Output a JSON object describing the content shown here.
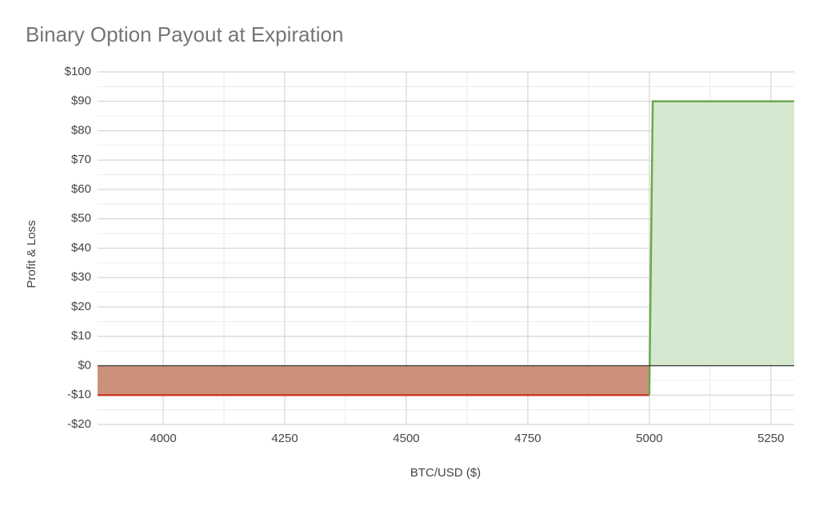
{
  "chart_data": {
    "type": "area",
    "title": "Binary Option Payout at Expiration",
    "x_label": "BTC/USD ($)",
    "y_label": "Profit & Loss",
    "series": [
      {
        "color": "#cc3b2a",
        "fill": "#c98b74",
        "x": [
          3865,
          5000
        ],
        "values": [
          -10,
          -10
        ]
      },
      {
        "color": "#6aa84f",
        "fill": "#d3e7cd",
        "x": [
          5000,
          5007,
          5298
        ],
        "values": [
          -10,
          90,
          90
        ]
      }
    ],
    "xlim": [
      3865,
      5298
    ],
    "xticks": [
      4000,
      4250,
      4500,
      4750,
      5000,
      5250
    ],
    "ylim": [
      -20,
      100
    ],
    "yticks": [
      {
        "value": -20,
        "label": "-$20"
      },
      {
        "value": -10,
        "label": "-$10"
      },
      {
        "value": 0,
        "label": "$0"
      },
      {
        "value": 10,
        "label": "$10"
      },
      {
        "value": 20,
        "label": "$20"
      },
      {
        "value": 30,
        "label": "$30"
      },
      {
        "value": 40,
        "label": "$40"
      },
      {
        "value": 50,
        "label": "$50"
      },
      {
        "value": 60,
        "label": "$60"
      },
      {
        "value": 70,
        "label": "$70"
      },
      {
        "value": 80,
        "label": "$80"
      },
      {
        "value": 90,
        "label": "$90"
      },
      {
        "value": 100,
        "label": "$100"
      }
    ],
    "grid": true
  }
}
